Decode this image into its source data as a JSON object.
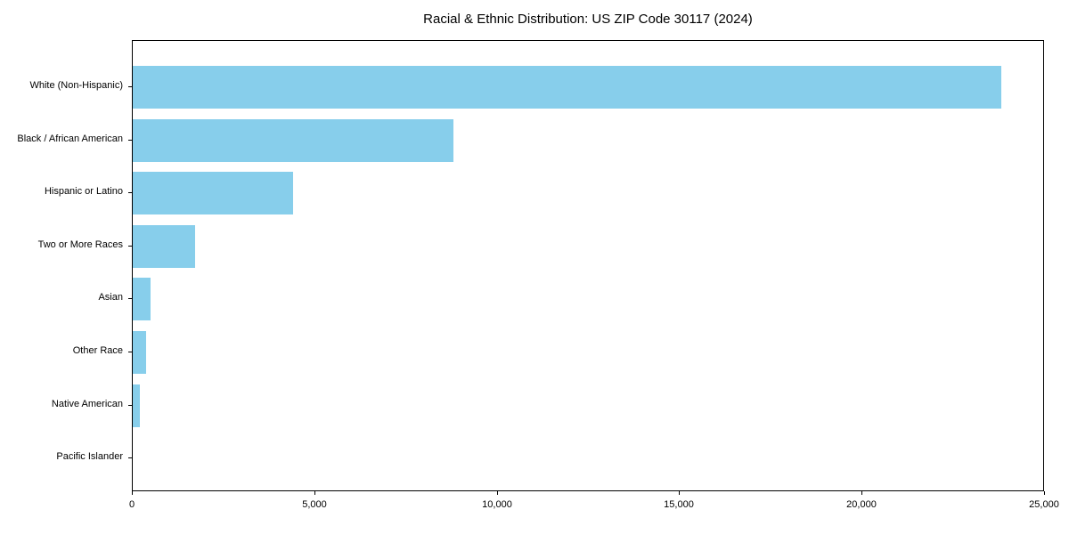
{
  "title": "Racial & Ethnic Distribution: US ZIP Code 30117 (2024)",
  "chart_data": {
    "type": "bar",
    "orientation": "horizontal",
    "title": "Racial & Ethnic Distribution: US ZIP Code 30117 (2024)",
    "categories": [
      "White (Non-Hispanic)",
      "Black / African American",
      "Hispanic or Latino",
      "Two or More Races",
      "Asian",
      "Other Race",
      "Native American",
      "Pacific Islander"
    ],
    "values": [
      23800,
      8800,
      4400,
      1700,
      480,
      370,
      190,
      0
    ],
    "xlabel": "",
    "ylabel": "",
    "xlim": [
      0,
      25000
    ],
    "xticks": [
      0,
      5000,
      10000,
      15000,
      20000,
      25000
    ],
    "xtick_labels": [
      "0",
      "5,000",
      "10,000",
      "15,000",
      "20,000",
      "25,000"
    ],
    "bar_color": "#87CEEB",
    "background_color": "#ffffff",
    "spine_color": "#000000",
    "grid": false,
    "legend": null
  }
}
